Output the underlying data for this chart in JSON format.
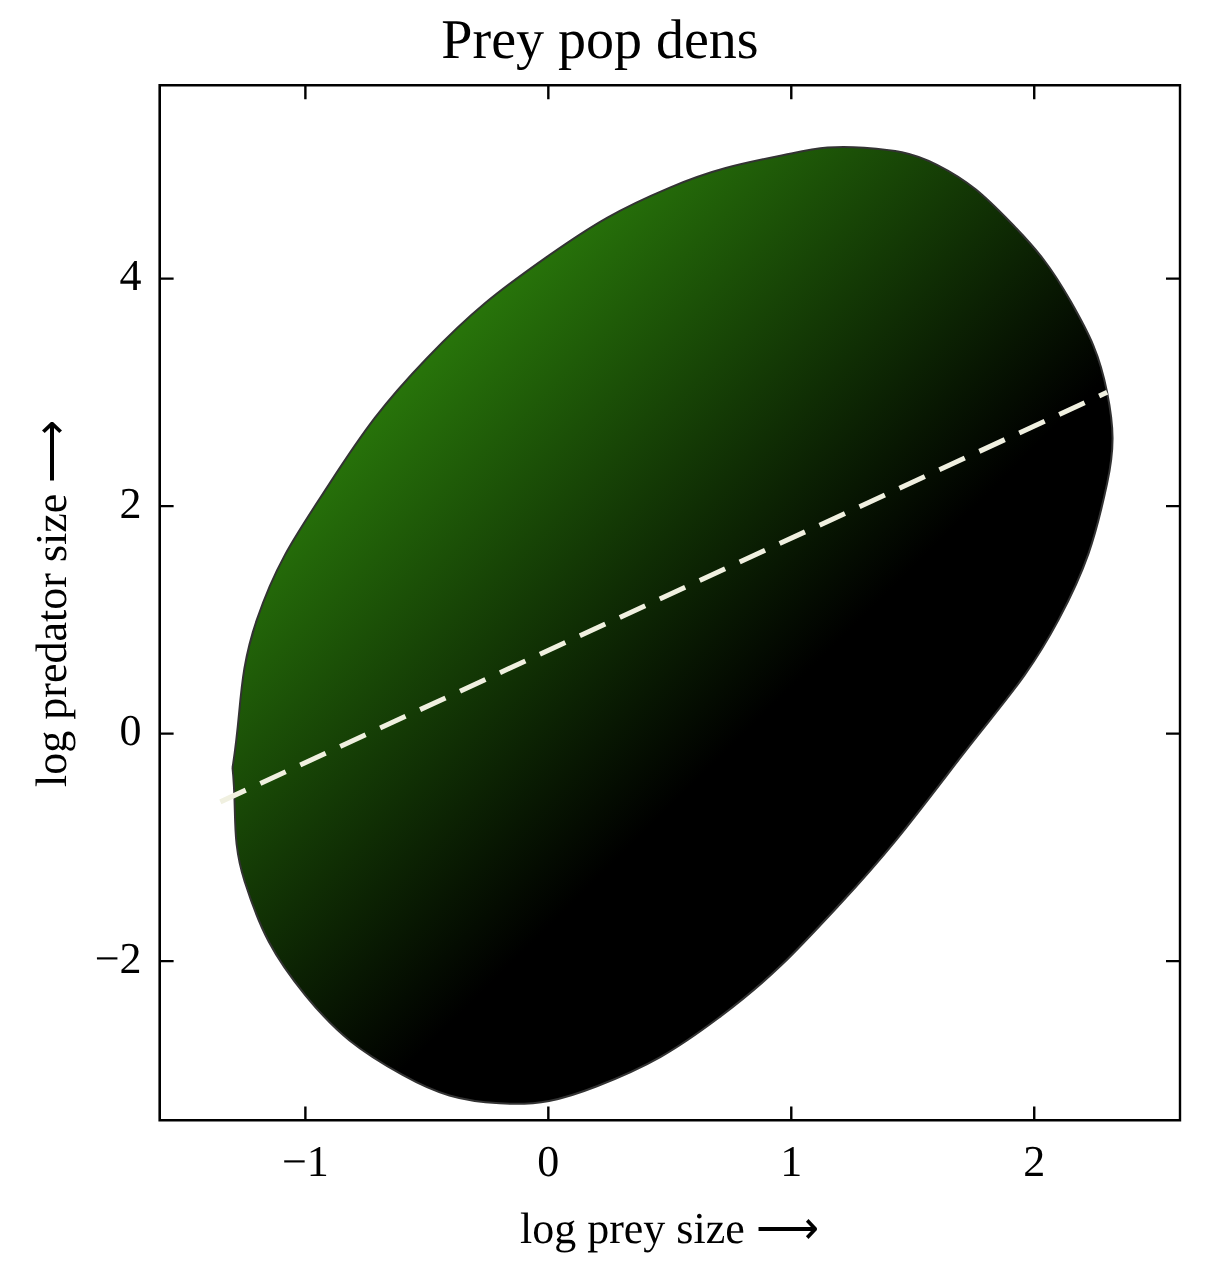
{
  "chart_data": {
    "type": "line",
    "title": "Prey pop dens",
    "xlabel": "log prey size ⟶",
    "ylabel": "log predator size ⟶",
    "xlim": [
      -1.6,
      2.6
    ],
    "xticks": [
      -1,
      0,
      1,
      2
    ],
    "ylim": [
      -3.4,
      5.7
    ],
    "yticks": [
      -2,
      0,
      2,
      4
    ],
    "grid": false,
    "legend": false,
    "series": [
      {
        "type": "area",
        "color": "#2f8a0c",
        "x": [
          -1.3,
          -1.2,
          -0.9,
          -0.5,
          0,
          0.5,
          1.0,
          1.3,
          1.6,
          1.9,
          2.15,
          2.3,
          2.3,
          2.1,
          1.7,
          1.2,
          0.7,
          0.2,
          -0.2,
          -0.6,
          -1.0,
          -1.25,
          -1.3
        ],
        "values": [
          -0.3,
          1.0,
          2.2,
          3.3,
          4.2,
          4.8,
          5.1,
          5.15,
          5.0,
          4.5,
          3.8,
          3.0,
          2.2,
          1.0,
          -0.2,
          -1.5,
          -2.5,
          -3.1,
          -3.25,
          -3.0,
          -2.3,
          -1.3,
          -0.3
        ]
      },
      {
        "type": "line",
        "color": "#f0f0e0",
        "line_style": "dashed",
        "x": [
          -1.35,
          2.3
        ],
        "values": [
          -0.6,
          3.0
        ]
      }
    ]
  }
}
